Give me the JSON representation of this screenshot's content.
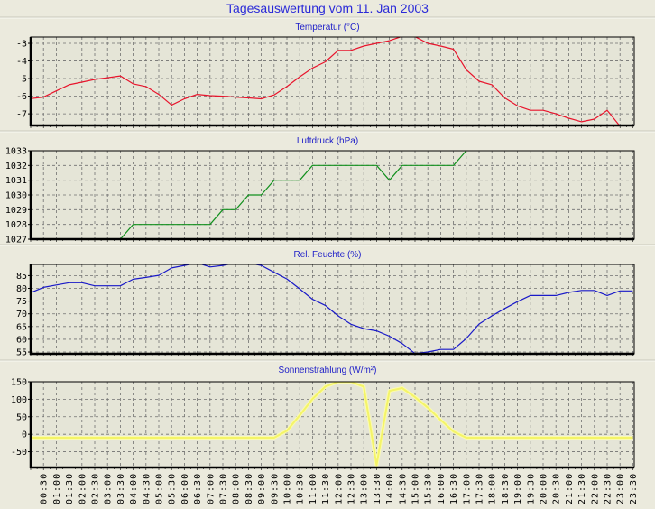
{
  "title": "Tagesauswertung vom 11. Jan 2003",
  "time_labels": [
    "00:30",
    "01:00",
    "01:30",
    "02:00",
    "02:30",
    "03:00",
    "03:30",
    "04:00",
    "04:30",
    "05:00",
    "05:30",
    "06:00",
    "06:30",
    "07:00",
    "07:30",
    "08:00",
    "08:30",
    "09:00",
    "09:30",
    "10:00",
    "10:30",
    "11:00",
    "11:30",
    "12:00",
    "12:30",
    "13:00",
    "13:30",
    "14:00",
    "14:30",
    "15:00",
    "15:30",
    "16:00",
    "16:30",
    "17:00",
    "17:30",
    "18:00",
    "18:30",
    "19:00",
    "19:30",
    "20:00",
    "20:30",
    "21:00",
    "21:30",
    "22:00",
    "22:30",
    "23:00",
    "23:30"
  ],
  "chart_data": [
    {
      "type": "line",
      "title": "Temperatur (°C)",
      "color": "#e8142c",
      "ylim": [
        -7.66,
        -2.64
      ],
      "yticks": [
        -3,
        -4,
        -5,
        -6,
        -7
      ],
      "x_start": "00:00",
      "x_step_minutes": 30,
      "grid": true,
      "values": [
        -6.14,
        -6.05,
        -5.7,
        -5.35,
        -5.2,
        -5.05,
        -4.95,
        -4.85,
        -5.3,
        -5.45,
        -5.9,
        -6.5,
        -6.15,
        -5.9,
        -5.97,
        -6.0,
        -6.05,
        -6.1,
        -6.15,
        -5.93,
        -5.45,
        -4.9,
        -4.4,
        -4.05,
        -3.4,
        -3.4,
        -3.15,
        -3.0,
        -2.85,
        -2.6,
        -2.62,
        -3.0,
        -3.15,
        -3.33,
        -4.5,
        -5.15,
        -5.35,
        -6.1,
        -6.55,
        -6.8,
        -6.8,
        -7.0,
        -7.25,
        -7.45,
        -7.3,
        -6.8,
        -7.7,
        null
      ]
    },
    {
      "type": "line",
      "title": "Luftdruck (hPa)",
      "color": "#12901e",
      "ylim": [
        1027,
        1033
      ],
      "yticks": [
        1033,
        1032,
        1031,
        1030,
        1029,
        1028,
        1027
      ],
      "x_start": "00:00",
      "x_step_minutes": 30,
      "grid": true,
      "values": [
        null,
        null,
        null,
        null,
        null,
        null,
        null,
        1027,
        1028,
        1028,
        1028,
        1028,
        1028,
        1028,
        1028,
        1029,
        1029,
        1030,
        1030,
        1031,
        1031,
        1031,
        1032,
        1032,
        1032,
        1032,
        1032,
        1032,
        1031,
        1032,
        1032,
        1032,
        1032,
        1032,
        1033,
        null,
        null,
        null,
        null,
        null,
        null,
        null,
        null,
        null,
        null,
        null,
        null,
        null
      ]
    },
    {
      "type": "line",
      "title": "Rel. Feuchte (%)",
      "color": "#1a1ac8",
      "ylim": [
        54.3,
        89.4
      ],
      "yticks": [
        85,
        80,
        75,
        70,
        65,
        60,
        55
      ],
      "x_start": "00:00",
      "x_step_minutes": 30,
      "grid": true,
      "values": [
        78.3,
        80.4,
        81.3,
        82.2,
        82.2,
        81,
        81,
        81,
        83.6,
        84.3,
        85.1,
        88,
        89,
        90,
        88.4,
        89,
        90,
        90,
        89,
        86.3,
        83.7,
        79.8,
        75.7,
        73.3,
        69.2,
        65.9,
        64.2,
        63.3,
        61.2,
        58.3,
        54.4,
        55,
        56,
        56,
        60.3,
        66,
        69.2,
        72.1,
        74.8,
        77.2,
        77.2,
        77.2,
        78.4,
        79.2,
        79.2,
        77.2,
        79,
        79
      ]
    },
    {
      "type": "line",
      "title": "Sonnenstrahlung (W/m²)",
      "color": "#f4f468",
      "ylim": [
        -95,
        150
      ],
      "yticks": [
        150,
        100,
        50,
        0,
        -50
      ],
      "x_start": "00:00",
      "x_step_minutes": 30,
      "grid": true,
      "values": [
        -10,
        -10,
        -10,
        -10,
        -10,
        -10,
        -10,
        -10,
        -10,
        -10,
        -10,
        -10,
        -10,
        -10,
        -10,
        -10,
        -10,
        -10,
        -10,
        -10,
        10,
        54,
        101,
        136,
        150,
        150,
        136,
        -88,
        124,
        132,
        106,
        76,
        41,
        8,
        -10,
        -10,
        -10,
        -10,
        -10,
        -10,
        -10,
        -10,
        -10,
        -10,
        -10,
        -10,
        -10,
        -10
      ]
    }
  ]
}
